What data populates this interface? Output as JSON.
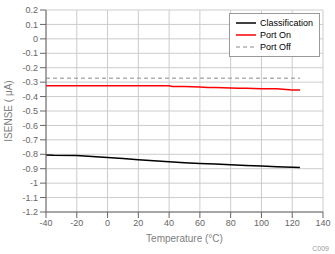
{
  "chart_data": {
    "type": "line",
    "xlabel": "Temperature (°C)",
    "ylabel": "ISENSE ( μA)",
    "xlim": [
      -40,
      140
    ],
    "ylim": [
      -1.2,
      0.2
    ],
    "xticks": [
      -40,
      -20,
      0,
      20,
      40,
      60,
      80,
      100,
      120,
      140
    ],
    "yticks": [
      -1.2,
      -1.1,
      -1,
      -0.9,
      -0.8,
      -0.7,
      -0.6,
      -0.5,
      -0.4,
      -0.3,
      -0.2,
      -0.1,
      0,
      0.1,
      0.2
    ],
    "grid": true,
    "legend": "upper right",
    "annotations": [
      "C009"
    ],
    "series": [
      {
        "name": "Classification",
        "color": "#000000",
        "line_style": "solid",
        "x": [
          -40,
          -35,
          -20,
          -10,
          0,
          10,
          20,
          30,
          40,
          50,
          60,
          70,
          80,
          90,
          100,
          110,
          120,
          125
        ],
        "values": [
          -0.805,
          -0.807,
          -0.808,
          -0.815,
          -0.823,
          -0.83,
          -0.838,
          -0.845,
          -0.852,
          -0.858,
          -0.863,
          -0.868,
          -0.873,
          -0.878,
          -0.882,
          -0.886,
          -0.89,
          -0.892
        ]
      },
      {
        "name": "Port On",
        "color": "#ff0000",
        "line_style": "solid",
        "x": [
          -40,
          -20,
          0,
          20,
          40,
          42,
          50,
          60,
          65,
          70,
          80,
          85,
          90,
          100,
          105,
          110,
          120,
          125
        ],
        "values": [
          -0.325,
          -0.325,
          -0.325,
          -0.325,
          -0.325,
          -0.33,
          -0.33,
          -0.333,
          -0.337,
          -0.337,
          -0.34,
          -0.342,
          -0.342,
          -0.346,
          -0.346,
          -0.346,
          -0.355,
          -0.355
        ]
      },
      {
        "name": "Port Off",
        "color": "#b0b0b0",
        "line_style": "dashed",
        "x": [
          -40,
          125
        ],
        "values": [
          -0.273,
          -0.273
        ]
      }
    ]
  }
}
